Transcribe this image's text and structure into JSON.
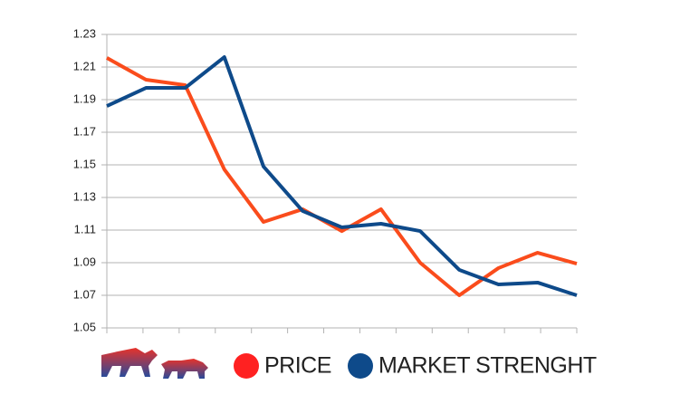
{
  "chart_data": {
    "type": "line",
    "categories": [
      null,
      null,
      null,
      null,
      null,
      null,
      null,
      null,
      null,
      null,
      null,
      null,
      null
    ],
    "series": [
      {
        "name": "PRICE",
        "color": "#fa4c1c",
        "values": [
          1.2156,
          1.2022,
          1.1989,
          1.1472,
          1.115,
          1.1228,
          1.1094,
          1.1228,
          1.09,
          1.07,
          1.0867,
          1.0961,
          1.0894
        ]
      },
      {
        "name": "MARKET STRENGHT",
        "color": "#0e4a8a",
        "values": [
          1.1861,
          1.1972,
          1.1972,
          1.2161,
          1.149,
          1.1217,
          1.1117,
          1.1139,
          1.1094,
          1.0856,
          1.0767,
          1.0778,
          1.07
        ]
      }
    ],
    "ylim": [
      1.05,
      1.23
    ],
    "yticks": [
      1.05,
      1.07,
      1.09,
      1.11,
      1.13,
      1.15,
      1.17,
      1.19,
      1.21,
      1.23
    ],
    "grid": true,
    "legend": "bottom"
  }
}
